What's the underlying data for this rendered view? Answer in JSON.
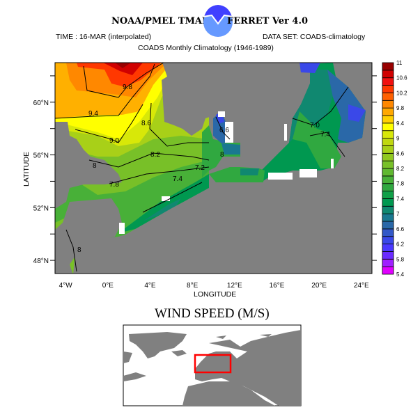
{
  "header": {
    "left_title": "NOAA/PMEL TMAP",
    "right_title": "FERRET Ver 4.0",
    "time": "TIME : 16-MAR (interpolated)",
    "dataset": "DATA SET: COADS-climatology",
    "subtitle": "COADS Monthly Climatology (1946-1989)"
  },
  "chart_data": {
    "type": "heatmap",
    "title": "WIND SPEED (M/S)",
    "xlabel": "LONGITUDE",
    "ylabel": "LATITUDE",
    "xlim": [
      -5,
      25
    ],
    "ylim": [
      47,
      63
    ],
    "x_ticks": [
      {
        "value": -4,
        "label": "4°W"
      },
      {
        "value": 0,
        "label": "0°E"
      },
      {
        "value": 4,
        "label": "4°E"
      },
      {
        "value": 8,
        "label": "8°E"
      },
      {
        "value": 12,
        "label": "12°E"
      },
      {
        "value": 16,
        "label": "16°E"
      },
      {
        "value": 20,
        "label": "20°E"
      },
      {
        "value": 24,
        "label": "24°E"
      }
    ],
    "y_ticks": [
      {
        "value": 48,
        "label": "48°N"
      },
      {
        "value": 52,
        "label": "52°N"
      },
      {
        "value": 56,
        "label": "56°N"
      },
      {
        "value": 60,
        "label": "60°N"
      }
    ],
    "colorbar": {
      "min": 5.4,
      "max": 11,
      "step": 0.2,
      "labels": [
        "11",
        "10.6",
        "10.2",
        "9.8",
        "9.4",
        "9",
        "8.6",
        "8.2",
        "7.8",
        "7.4",
        "7",
        "6.6",
        "6.2",
        "5.8",
        "5.4"
      ],
      "colors": [
        "#e000ff",
        "#a020ff",
        "#6a2aff",
        "#4a38ff",
        "#3a48e8",
        "#3258c8",
        "#2a68a8",
        "#1a7890",
        "#108870",
        "#009850",
        "#10a048",
        "#30a840",
        "#48b038",
        "#60b830",
        "#78c028",
        "#90c820",
        "#a8d018",
        "#c0d810",
        "#d8e808",
        "#ffff00",
        "#ffd000",
        "#ffa800",
        "#ff8800",
        "#ff6000",
        "#ff3800",
        "#f01010",
        "#d00000",
        "#980000"
      ]
    },
    "contour_labels": [
      "9.8",
      "9.4",
      "9.0",
      "8.6",
      "8.2",
      "8",
      "7.8",
      "7.4",
      "7.2",
      "6.6",
      "8",
      "7.0",
      "7.4",
      "8"
    ],
    "land_color": "#808080",
    "inset_region_color": "#ff0000"
  }
}
